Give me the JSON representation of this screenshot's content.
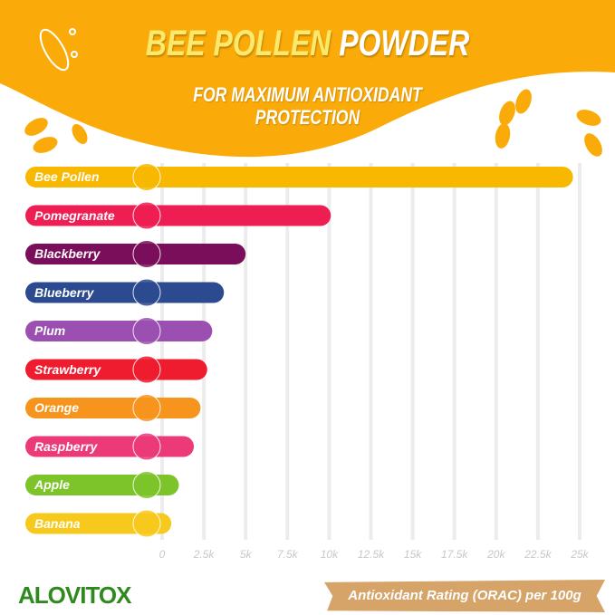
{
  "header": {
    "title_part1": "BEE POLLEN",
    "title_part2": "POWDER",
    "subtitle_line1": "FOR MAXIMUM ANTIOXIDANT",
    "subtitle_line2": "PROTECTION"
  },
  "brand": {
    "logo": "ALOVITOX"
  },
  "colors": {
    "banner": "#fbab09",
    "axis_text": "#c8c8c8",
    "grid": "#ececec"
  },
  "chart_data": {
    "type": "bar",
    "orientation": "horizontal",
    "categories": [
      "Bee Pollen",
      "Pomegranate",
      "Blackberry",
      "Blueberry",
      "Plum",
      "Strawberry",
      "Orange",
      "Raspberry",
      "Apple",
      "Banana"
    ],
    "values": [
      24600,
      10100,
      5000,
      3700,
      3000,
      2700,
      2300,
      1900,
      1000,
      550
    ],
    "colors": [
      "#f9b800",
      "#ee1d52",
      "#7a0e5a",
      "#2b4a8f",
      "#9b4fb0",
      "#ee1c2e",
      "#f7941d",
      "#ec3a78",
      "#7dc42a",
      "#f7c91c"
    ],
    "xlim": [
      0,
      25000
    ],
    "xticks": [
      "0",
      "2.5k",
      "5k",
      "7.5k",
      "10k",
      "12.5k",
      "15k",
      "17.5k",
      "20k",
      "22.5k",
      "25k"
    ],
    "xlabel": "Antioxidant Rating (ORAC) per 100g",
    "grid": true
  }
}
